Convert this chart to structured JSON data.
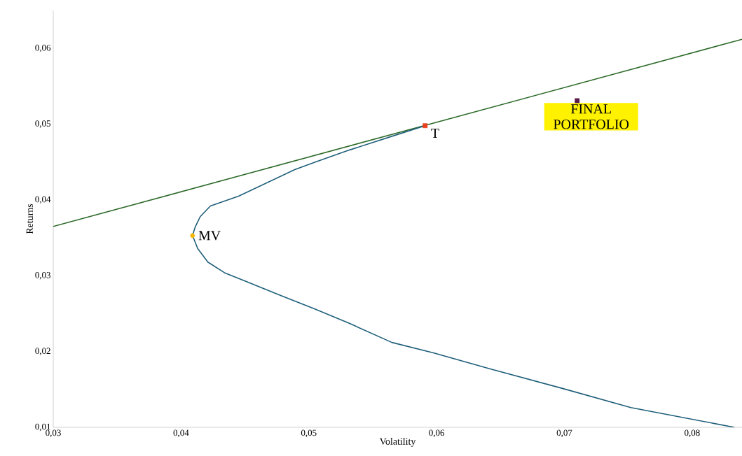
{
  "chart_data": {
    "type": "line",
    "xlabel": "Volatility",
    "ylabel": "Returns",
    "xlim": [
      0.03,
      0.0839
    ],
    "ylim": [
      0.01,
      0.065
    ],
    "xticks": [
      {
        "value": 0.03,
        "label": "0,03"
      },
      {
        "value": 0.04,
        "label": "0,04"
      },
      {
        "value": 0.05,
        "label": "0,05"
      },
      {
        "value": 0.06,
        "label": "0,06"
      },
      {
        "value": 0.07,
        "label": "0,07"
      },
      {
        "value": 0.08,
        "label": "0,08"
      }
    ],
    "yticks": [
      {
        "value": 0.01,
        "label": "0,01"
      },
      {
        "value": 0.02,
        "label": "0,02"
      },
      {
        "value": 0.03,
        "label": "0,03"
      },
      {
        "value": 0.04,
        "label": "0,04"
      },
      {
        "value": 0.05,
        "label": "0,05"
      },
      {
        "value": 0.06,
        "label": "0,06"
      }
    ],
    "grid": false,
    "line_style": "solid",
    "series": [
      {
        "color": "#2e6b2a",
        "marker": "none",
        "x": [
          0.03,
          0.0839
        ],
        "values": [
          0.0365,
          0.0612
        ]
      },
      {
        "color": "#1f5f7a",
        "marker": "none",
        "x": [
          0.0591,
          0.0565,
          0.0532,
          0.0505,
          0.0489,
          0.0445,
          0.0423,
          0.0415,
          0.0411,
          0.0409,
          0.0413,
          0.0421,
          0.0434,
          0.045,
          0.0478,
          0.0505,
          0.0532,
          0.0565,
          0.0598,
          0.0642,
          0.0697,
          0.0752,
          0.0833
        ],
        "values": [
          0.0498,
          0.0484,
          0.0466,
          0.045,
          0.044,
          0.0405,
          0.0392,
          0.0378,
          0.0364,
          0.0353,
          0.0336,
          0.0318,
          0.0304,
          0.0293,
          0.0274,
          0.0256,
          0.0237,
          0.0212,
          0.0198,
          0.0177,
          0.0152,
          0.0126,
          0.01
        ]
      },
      {
        "type": "scatter",
        "color": "#f5b800",
        "marker": "circle",
        "x": [
          0.0409
        ],
        "values": [
          0.0353
        ]
      },
      {
        "type": "scatter",
        "color": "#e8401c",
        "marker": "square",
        "x": [
          0.0591
        ],
        "values": [
          0.0498
        ]
      },
      {
        "type": "scatter",
        "color": "#5a1a4a",
        "marker": "square",
        "x": [
          0.071
        ],
        "values": [
          0.0531
        ]
      }
    ],
    "annotations": [
      {
        "text": "MV",
        "x": 0.0409,
        "y": 0.0353
      },
      {
        "text": "T",
        "x": 0.0591,
        "y": 0.0498
      },
      {
        "text": "FINAL PORTFOLIO",
        "x": 0.071,
        "y": 0.0531
      }
    ]
  }
}
